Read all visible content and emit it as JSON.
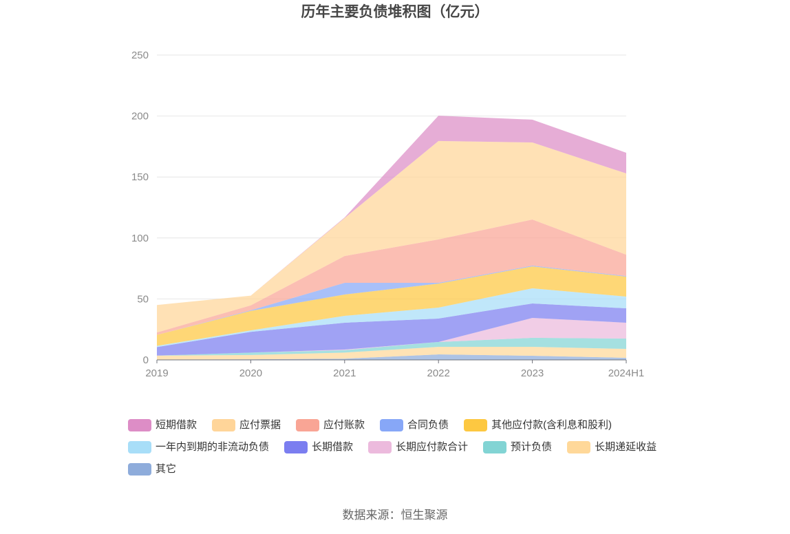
{
  "chart_data": {
    "type": "area",
    "stacked": true,
    "title": "历年主要负债堆积图（亿元）",
    "unit": "亿元",
    "categories": [
      "2019",
      "2020",
      "2021",
      "2022",
      "2023",
      "2024H1"
    ],
    "ylim": [
      0,
      250
    ],
    "y_ticks": [
      0,
      50,
      100,
      150,
      200,
      250
    ],
    "grid": true,
    "legend_position": "bottom",
    "series": [
      {
        "name": "短期借款",
        "color": "#dd8dc6",
        "values": [
          0,
          0,
          0.5,
          20.8,
          18.7,
          17
        ]
      },
      {
        "name": "应付票据",
        "color": "#ffd599",
        "values": [
          22.5,
          8,
          31.1,
          80.7,
          63.2,
          66.6
        ]
      },
      {
        "name": "应付账款",
        "color": "#f9a595",
        "values": [
          2,
          4,
          22,
          35.6,
          37.8,
          17.5
        ]
      },
      {
        "name": "合同负债",
        "color": "#87a7f7",
        "values": [
          0,
          0.5,
          9.6,
          0.6,
          0.6,
          0.5
        ]
      },
      {
        "name": "其他应付款(含利息和股利)",
        "color": "#fdc841",
        "values": [
          9,
          16,
          17.5,
          19.7,
          18,
          16.4
        ]
      },
      {
        "name": "一年内到期的非流动负债",
        "color": "#a8def8",
        "values": [
          1,
          1.2,
          5.6,
          9,
          12.4,
          9.6
        ]
      },
      {
        "name": "长期借款",
        "color": "#7b7ef0",
        "values": [
          7,
          17,
          22,
          19.2,
          11.9,
          11.8
        ]
      },
      {
        "name": "长期应付款合计",
        "color": "#ecbadd",
        "values": [
          0,
          0,
          0.5,
          0,
          16.3,
          13
        ]
      },
      {
        "name": "预计负债",
        "color": "#82d4d4",
        "values": [
          0,
          2,
          2,
          4,
          7.4,
          8.5
        ]
      },
      {
        "name": "长期递延收益",
        "color": "#ffd899",
        "values": [
          3.2,
          3.5,
          5,
          6.2,
          7.3,
          7.3
        ]
      },
      {
        "name": "其它",
        "color": "#8eacdb",
        "values": [
          0.3,
          0.5,
          1,
          4.5,
          3.4,
          1.7
        ]
      }
    ]
  },
  "footer": {
    "source": "数据来源：恒生聚源"
  }
}
